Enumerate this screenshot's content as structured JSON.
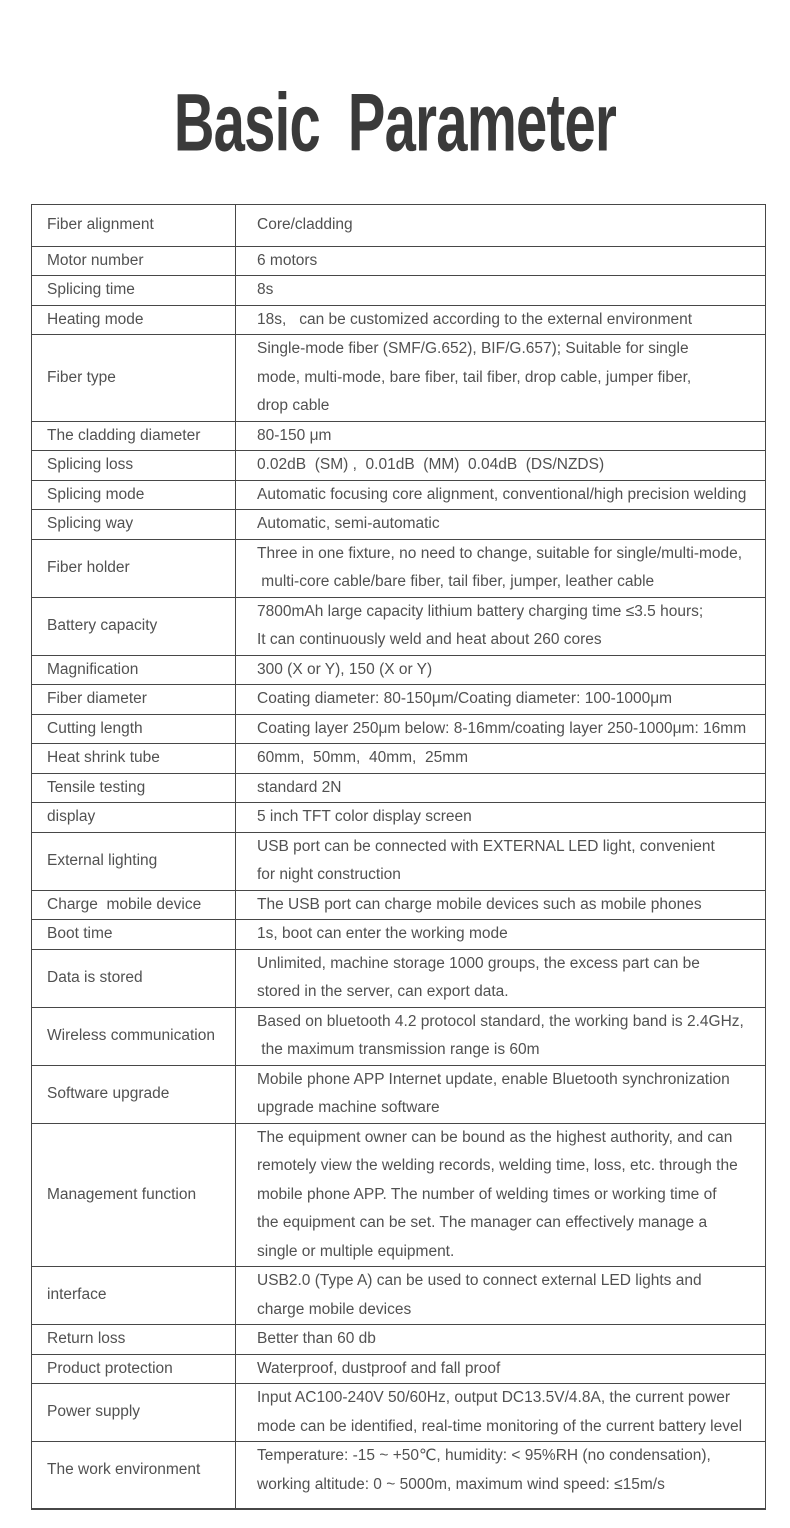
{
  "page": {
    "title": "Basic Parameter"
  },
  "colors": {
    "border": "#474747",
    "text": "#515151",
    "title": "#3a3a3a",
    "background": "#ffffff"
  },
  "table": {
    "rows": [
      {
        "label": "Fiber alignment",
        "value_lines": [
          "Core/cladding"
        ]
      },
      {
        "label": "Motor number",
        "value_lines": [
          "6 motors"
        ]
      },
      {
        "label": "Splicing time",
        "value_lines": [
          "8s"
        ]
      },
      {
        "label": "Heating mode",
        "value_lines": [
          "18s,   can be customized according to the external environment"
        ]
      },
      {
        "label": "Fiber type",
        "value_lines": [
          "Single-mode fiber (SMF/G.652), BIF/G.657); Suitable for single",
          "mode, multi-mode, bare fiber, tail fiber, drop cable, jumper fiber,",
          "drop cable"
        ]
      },
      {
        "label": "The cladding diameter",
        "value_lines": [
          "80-150 μm"
        ]
      },
      {
        "label": "Splicing loss",
        "value_lines": [
          "0.02dB  (SM) ,  0.01dB  (MM)  0.04dB  (DS/NZDS)"
        ]
      },
      {
        "label": "Splicing mode",
        "value_lines": [
          "Automatic focusing core alignment, conventional/high precision welding"
        ]
      },
      {
        "label": "Splicing way",
        "value_lines": [
          "Automatic, semi-automatic"
        ]
      },
      {
        "label": "Fiber holder",
        "value_lines": [
          "Three in one fixture, no need to change, suitable for single/multi-mode,",
          " multi-core cable/bare fiber, tail fiber, jumper, leather cable"
        ]
      },
      {
        "label": "Battery capacity",
        "value_lines": [
          "7800mAh large capacity lithium battery charging time ≤3.5 hours;",
          "It can continuously weld and heat about 260 cores"
        ]
      },
      {
        "label": "Magnification",
        "value_lines": [
          "300 (X or Y), 150 (X or Y)"
        ]
      },
      {
        "label": "Fiber diameter",
        "value_lines": [
          "Coating diameter: 80-150μm/Coating diameter: 100-1000μm"
        ]
      },
      {
        "label": "Cutting length",
        "value_lines": [
          "Coating layer 250μm below: 8-16mm/coating layer 250-1000μm: 16mm"
        ]
      },
      {
        "label": "Heat shrink tube",
        "value_lines": [
          "60mm,  50mm,  40mm,  25mm"
        ]
      },
      {
        "label": "Tensile testing",
        "value_lines": [
          "standard 2N"
        ]
      },
      {
        "label": "display",
        "value_lines": [
          "5 inch TFT color display screen"
        ]
      },
      {
        "label": "External lighting",
        "value_lines": [
          "USB port can be connected with EXTERNAL LED light, convenient",
          "for night construction"
        ]
      },
      {
        "label": "Charge  mobile device",
        "value_lines": [
          "The USB port can charge mobile devices such as mobile phones"
        ]
      },
      {
        "label": "Boot time",
        "value_lines": [
          "1s, boot can enter the working mode"
        ]
      },
      {
        "label": "Data is stored",
        "value_lines": [
          "Unlimited, machine storage 1000 groups, the excess part can be",
          "stored in the server, can export data."
        ]
      },
      {
        "label": "Wireless communication",
        "value_lines": [
          "Based on bluetooth 4.2 protocol standard, the working band is 2.4GHz,",
          " the maximum transmission range is 60m"
        ]
      },
      {
        "label": "Software upgrade",
        "value_lines": [
          "Mobile phone APP Internet update, enable Bluetooth synchronization",
          "upgrade machine software"
        ]
      },
      {
        "label": "Management function",
        "value_lines": [
          "The equipment owner can be bound as the highest authority, and can",
          "remotely view the welding records, welding time, loss, etc. through the",
          "mobile phone APP. The number of welding times or working time of",
          "the equipment can be set. The manager can effectively manage a",
          "single or multiple equipment."
        ]
      },
      {
        "label": "interface",
        "value_lines": [
          "USB2.0 (Type A) can be used to connect external LED lights and",
          "charge mobile devices"
        ]
      },
      {
        "label": "Return loss",
        "value_lines": [
          "Better than 60 db"
        ]
      },
      {
        "label": "Product protection",
        "value_lines": [
          "Waterproof, dustproof and fall proof"
        ]
      },
      {
        "label": "Power supply",
        "value_lines": [
          "Input AC100-240V 50/60Hz, output DC13.5V/4.8A, the current power",
          "mode can be identified, real-time monitoring of the current battery level"
        ]
      },
      {
        "label": "The work environment",
        "value_lines": [
          "Temperature: -15 ~ +50℃, humidity: < 95%RH (no condensation),",
          "working altitude: 0 ~ 5000m, maximum wind speed: ≤15m/s"
        ]
      }
    ]
  }
}
